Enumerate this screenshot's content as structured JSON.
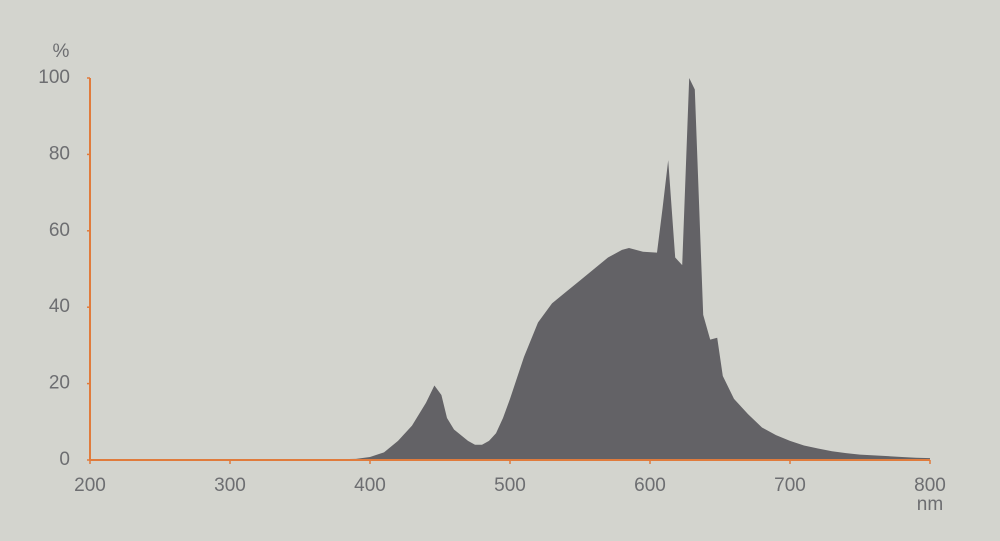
{
  "chart_data": {
    "type": "area",
    "y_label": "%",
    "x_label": "nm",
    "color": "#636266",
    "axis_color": "#e07b3c",
    "xlim": [
      200,
      800
    ],
    "ylim": [
      0,
      100
    ],
    "xticks": [
      200,
      300,
      400,
      500,
      600,
      700,
      800
    ],
    "yticks": [
      0,
      20,
      40,
      60,
      80,
      100
    ],
    "x": [
      375,
      390,
      400,
      410,
      420,
      430,
      440,
      446,
      451,
      455,
      460,
      470,
      475,
      480,
      485,
      490,
      495,
      500,
      510,
      520,
      530,
      540,
      550,
      560,
      570,
      580,
      585,
      590,
      595,
      605,
      609,
      613,
      618,
      623,
      628,
      632,
      638,
      643,
      648,
      652,
      660,
      670,
      680,
      690,
      700,
      710,
      720,
      730,
      740,
      750,
      760,
      770,
      780,
      790,
      800
    ],
    "values": [
      0.2,
      0.3,
      0.8,
      2,
      5,
      9,
      15,
      19.5,
      17,
      11,
      8,
      5,
      4,
      4,
      5,
      7,
      11,
      16,
      27,
      36,
      41,
      44,
      47,
      50,
      53,
      55,
      55.5,
      55,
      54.5,
      54.3,
      66,
      78.5,
      53,
      51,
      100,
      97,
      38,
      31.5,
      32,
      22,
      16,
      12,
      8.5,
      6.5,
      5,
      3.8,
      3,
      2.3,
      1.8,
      1.4,
      1.2,
      1,
      0.8,
      0.6,
      0.5
    ]
  }
}
